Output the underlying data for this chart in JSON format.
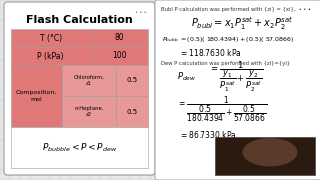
{
  "bg_color": "#e8e8e8",
  "pink_color": "#e07878",
  "pink_light": "#e89090",
  "title": "Flash Calculation",
  "t_label": "T (°C)",
  "t_value": "80",
  "p_label": "P (kPa)",
  "p_value": "100",
  "comp_label": "Composition,\nmol",
  "chem1": "Chloroform,\nz1",
  "chem2": "n-Heptane,\nz2",
  "val1": "0.5",
  "val2": "0.5",
  "bubl_header": "Bubl P calculation was performed with {zi} = {xi},  • • •",
  "bubl_calc": "= (0.5)( 180.4394) + (0.5)( 57.0866)",
  "bubl_result": "= 118.7630 kPa",
  "dew_header": "Dew P calculation was performed with {zi}={yi}",
  "dew_result": "= 86.7330 kPa",
  "webcam_color": "#2a1a10"
}
